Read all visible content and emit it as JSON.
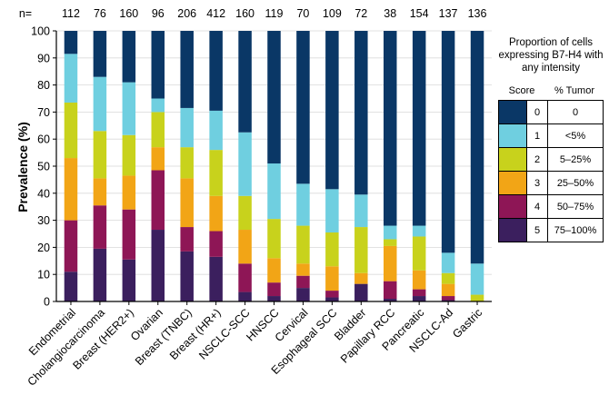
{
  "chart_data": {
    "type": "bar",
    "stacked": true,
    "n_label": "n=",
    "n_values": [
      112,
      76,
      160,
      96,
      206,
      412,
      160,
      119,
      70,
      109,
      72,
      38,
      154,
      137,
      136
    ],
    "categories": [
      "Endometrial",
      "Cholangiocarcinoma",
      "Breast (HER2+)",
      "Ovarian",
      "Breast (TNBC)",
      "Breast (HR+)",
      "NSCLC-SCC",
      "HNSCC",
      "Cervical",
      "Esophageal SCC",
      "Bladder",
      "Papillary RCC",
      "Pancreatic",
      "NSCLC-Ad",
      "Gastric"
    ],
    "ylabel": "Prevalence (%)",
    "xlabel": "",
    "ylim": [
      0,
      100
    ],
    "yticks": [
      0,
      10,
      20,
      30,
      40,
      50,
      60,
      70,
      80,
      90,
      100
    ],
    "series": [
      {
        "name": "5",
        "tumor": "75–100%",
        "color": "#3b1f5e",
        "values": [
          11,
          19.5,
          15.5,
          26.5,
          18.5,
          16.5,
          3.5,
          2,
          5,
          1.5,
          6.5,
          1,
          2,
          0.5,
          0
        ]
      },
      {
        "name": "4",
        "tumor": "50–75%",
        "color": "#8e1656",
        "values": [
          19,
          16,
          18.5,
          22,
          9,
          9.5,
          10.5,
          5,
          4.5,
          2.5,
          0,
          6.5,
          2.5,
          1.5,
          0
        ]
      },
      {
        "name": "3",
        "tumor": "25–50%",
        "color": "#f2a516",
        "values": [
          23,
          10,
          12.5,
          8.5,
          18,
          13,
          12.5,
          9,
          4.5,
          9,
          4,
          13,
          7,
          4.5,
          0
        ]
      },
      {
        "name": "2",
        "tumor": "5–25%",
        "color": "#c8d21c",
        "values": [
          20.5,
          17.5,
          15,
          13,
          11.5,
          17,
          12.5,
          14.5,
          14,
          12.5,
          17,
          2.5,
          12.5,
          4,
          2.5
        ]
      },
      {
        "name": "1",
        "tumor": "<5%",
        "color": "#6fcfe0",
        "values": [
          18,
          20,
          19.5,
          5,
          14.5,
          14.5,
          23.5,
          20.5,
          15.5,
          16,
          12,
          5,
          4,
          7.5,
          11.5
        ]
      },
      {
        "name": "0",
        "tumor": "0",
        "color": "#0a3766",
        "values": [
          8.5,
          17,
          19,
          25,
          28.5,
          29.5,
          37.5,
          49,
          56.5,
          58.5,
          60.5,
          72,
          72,
          82,
          86
        ]
      }
    ],
    "legend": {
      "title": "Proportion of cells expressing B7-H4 with any intensity",
      "col_score": "Score",
      "col_tumor": "% Tumor",
      "placement": "right"
    }
  }
}
